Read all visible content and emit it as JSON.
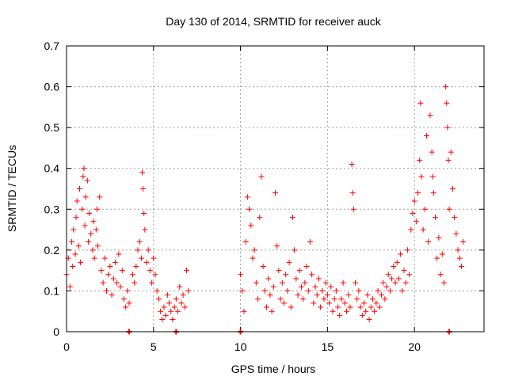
{
  "chart_data": {
    "type": "scatter",
    "title": "Day 130 of 2014, SRMTID for receiver auck",
    "xlabel": "GPS time / hours",
    "ylabel": "SRMTID / TECUs",
    "xlim": [
      0,
      24
    ],
    "ylim": [
      0,
      0.7
    ],
    "x_ticks": [
      0,
      5,
      10,
      15,
      20
    ],
    "x_tick_labels": [
      "0",
      "5",
      "10",
      "15",
      "20"
    ],
    "y_ticks": [
      0,
      0.1,
      0.2,
      0.3,
      0.4,
      0.5,
      0.6,
      0.7
    ],
    "y_tick_labels": [
      "0",
      "0.1",
      "0.2",
      "0.3",
      "0.4",
      "0.5",
      "0.6",
      "0.7"
    ],
    "grid": true,
    "marker": "plus",
    "series_color": "#ff0000",
    "series": [
      {
        "name": "SRMTID",
        "points": [
          [
            0.0,
            0.14
          ],
          [
            0.1,
            0.18
          ],
          [
            0.2,
            0.11
          ],
          [
            0.3,
            0.22
          ],
          [
            0.35,
            0.16
          ],
          [
            0.4,
            0.25
          ],
          [
            0.5,
            0.19
          ],
          [
            0.55,
            0.28
          ],
          [
            0.6,
            0.32
          ],
          [
            0.7,
            0.21
          ],
          [
            0.75,
            0.35
          ],
          [
            0.8,
            0.17
          ],
          [
            0.9,
            0.3
          ],
          [
            0.95,
            0.38
          ],
          [
            1.0,
            0.4
          ],
          [
            1.05,
            0.26
          ],
          [
            1.1,
            0.33
          ],
          [
            1.2,
            0.37
          ],
          [
            1.25,
            0.22
          ],
          [
            1.3,
            0.29
          ],
          [
            1.4,
            0.24
          ],
          [
            1.5,
            0.2
          ],
          [
            1.55,
            0.27
          ],
          [
            1.6,
            0.18
          ],
          [
            1.7,
            0.25
          ],
          [
            1.75,
            0.3
          ],
          [
            1.8,
            0.21
          ],
          [
            1.9,
            0.33
          ],
          [
            2.0,
            0.15
          ],
          [
            2.1,
            0.12
          ],
          [
            2.2,
            0.18
          ],
          [
            2.3,
            0.1
          ],
          [
            2.4,
            0.14
          ],
          [
            2.5,
            0.16
          ],
          [
            2.6,
            0.09
          ],
          [
            2.7,
            0.13
          ],
          [
            2.8,
            0.17
          ],
          [
            2.9,
            0.12
          ],
          [
            3.0,
            0.19
          ],
          [
            3.1,
            0.11
          ],
          [
            3.2,
            0.15
          ],
          [
            3.3,
            0.08
          ],
          [
            3.4,
            0.06
          ],
          [
            3.5,
            0.1
          ],
          [
            3.6,
            0.07
          ],
          [
            3.8,
            0.14
          ],
          [
            3.9,
            0.12
          ],
          [
            4.0,
            0.16
          ],
          [
            4.1,
            0.2
          ],
          [
            4.2,
            0.22
          ],
          [
            4.3,
            0.18
          ],
          [
            4.35,
            0.39
          ],
          [
            4.4,
            0.35
          ],
          [
            4.45,
            0.29
          ],
          [
            4.5,
            0.25
          ],
          [
            4.6,
            0.17
          ],
          [
            4.7,
            0.2
          ],
          [
            4.8,
            0.15
          ],
          [
            4.9,
            0.12
          ],
          [
            5.0,
            0.18
          ],
          [
            5.1,
            0.14
          ],
          [
            5.2,
            0.1
          ],
          [
            5.3,
            0.08
          ],
          [
            5.4,
            0.05
          ],
          [
            5.5,
            0.03
          ],
          [
            5.6,
            0.06
          ],
          [
            5.7,
            0.04
          ],
          [
            5.8,
            0.09
          ],
          [
            5.9,
            0.07
          ],
          [
            6.0,
            0.05
          ],
          [
            6.1,
            0.03
          ],
          [
            6.2,
            0.06
          ],
          [
            6.3,
            0.08
          ],
          [
            6.4,
            0.05
          ],
          [
            6.5,
            0.11
          ],
          [
            6.6,
            0.07
          ],
          [
            6.7,
            0.09
          ],
          [
            6.8,
            0.06
          ],
          [
            6.9,
            0.15
          ],
          [
            7.0,
            0.1
          ],
          [
            10.0,
            0.14
          ],
          [
            10.1,
            0.1
          ],
          [
            10.2,
            0.05
          ],
          [
            10.3,
            0.22
          ],
          [
            10.4,
            0.33
          ],
          [
            10.5,
            0.3
          ],
          [
            10.6,
            0.26
          ],
          [
            10.7,
            0.18
          ],
          [
            10.8,
            0.2
          ],
          [
            10.9,
            0.12
          ],
          [
            11.0,
            0.08
          ],
          [
            11.1,
            0.28
          ],
          [
            11.2,
            0.38
          ],
          [
            11.3,
            0.16
          ],
          [
            11.4,
            0.1
          ],
          [
            11.5,
            0.06
          ],
          [
            11.6,
            0.13
          ],
          [
            11.7,
            0.09
          ],
          [
            11.8,
            0.05
          ],
          [
            11.9,
            0.11
          ],
          [
            12.0,
            0.34
          ],
          [
            12.1,
            0.21
          ],
          [
            12.2,
            0.15
          ],
          [
            12.3,
            0.08
          ],
          [
            12.4,
            0.12
          ],
          [
            12.5,
            0.07
          ],
          [
            12.6,
            0.14
          ],
          [
            12.7,
            0.1
          ],
          [
            12.8,
            0.17
          ],
          [
            12.9,
            0.06
          ],
          [
            13.0,
            0.28
          ],
          [
            13.1,
            0.2
          ],
          [
            13.2,
            0.13
          ],
          [
            13.3,
            0.09
          ],
          [
            13.4,
            0.15
          ],
          [
            13.5,
            0.11
          ],
          [
            13.6,
            0.08
          ],
          [
            13.7,
            0.12
          ],
          [
            13.8,
            0.16
          ],
          [
            13.9,
            0.1
          ],
          [
            14.0,
            0.22
          ],
          [
            14.1,
            0.14
          ],
          [
            14.2,
            0.07
          ],
          [
            14.3,
            0.11
          ],
          [
            14.4,
            0.09
          ],
          [
            14.5,
            0.13
          ],
          [
            14.6,
            0.06
          ],
          [
            14.7,
            0.1
          ],
          [
            14.8,
            0.08
          ],
          [
            14.9,
            0.12
          ],
          [
            15.0,
            0.09
          ],
          [
            15.1,
            0.07
          ],
          [
            15.2,
            0.11
          ],
          [
            15.3,
            0.05
          ],
          [
            15.4,
            0.08
          ],
          [
            15.5,
            0.1
          ],
          [
            15.6,
            0.06
          ],
          [
            15.7,
            0.04
          ],
          [
            15.8,
            0.08
          ],
          [
            15.9,
            0.12
          ],
          [
            16.0,
            0.07
          ],
          [
            16.1,
            0.05
          ],
          [
            16.2,
            0.09
          ],
          [
            16.3,
            0.06
          ],
          [
            16.4,
            0.41
          ],
          [
            16.45,
            0.34
          ],
          [
            16.5,
            0.3
          ],
          [
            16.6,
            0.12
          ],
          [
            16.7,
            0.08
          ],
          [
            16.8,
            0.1
          ],
          [
            16.9,
            0.06
          ],
          [
            17.0,
            0.04
          ],
          [
            17.1,
            0.07
          ],
          [
            17.2,
            0.05
          ],
          [
            17.3,
            0.09
          ],
          [
            17.4,
            0.03
          ],
          [
            17.5,
            0.06
          ],
          [
            17.6,
            0.08
          ],
          [
            17.7,
            0.05
          ],
          [
            17.8,
            0.07
          ],
          [
            17.9,
            0.1
          ],
          [
            18.0,
            0.06
          ],
          [
            18.1,
            0.09
          ],
          [
            18.2,
            0.12
          ],
          [
            18.3,
            0.08
          ],
          [
            18.4,
            0.11
          ],
          [
            18.5,
            0.14
          ],
          [
            18.6,
            0.1
          ],
          [
            18.7,
            0.13
          ],
          [
            18.8,
            0.16
          ],
          [
            18.9,
            0.12
          ],
          [
            19.0,
            0.17
          ],
          [
            19.1,
            0.13
          ],
          [
            19.2,
            0.19
          ],
          [
            19.3,
            0.1
          ],
          [
            19.4,
            0.15
          ],
          [
            19.5,
            0.12
          ],
          [
            19.6,
            0.2
          ],
          [
            19.7,
            0.14
          ],
          [
            19.8,
            0.25
          ],
          [
            19.9,
            0.29
          ],
          [
            20.0,
            0.32
          ],
          [
            20.1,
            0.27
          ],
          [
            20.2,
            0.34
          ],
          [
            20.3,
            0.42
          ],
          [
            20.35,
            0.56
          ],
          [
            20.4,
            0.38
          ],
          [
            20.5,
            0.25
          ],
          [
            20.6,
            0.3
          ],
          [
            20.7,
            0.48
          ],
          [
            20.8,
            0.22
          ],
          [
            20.9,
            0.53
          ],
          [
            21.0,
            0.44
          ],
          [
            21.05,
            0.38
          ],
          [
            21.1,
            0.34
          ],
          [
            21.2,
            0.28
          ],
          [
            21.3,
            0.18
          ],
          [
            21.4,
            0.23
          ],
          [
            21.5,
            0.14
          ],
          [
            21.6,
            0.19
          ],
          [
            21.7,
            0.12
          ],
          [
            21.8,
            0.6
          ],
          [
            21.85,
            0.56
          ],
          [
            21.9,
            0.5
          ],
          [
            21.95,
            0.42
          ],
          [
            22.0,
            0.3
          ],
          [
            22.1,
            0.44
          ],
          [
            22.2,
            0.35
          ],
          [
            22.3,
            0.28
          ],
          [
            22.4,
            0.24
          ],
          [
            22.5,
            0.2
          ],
          [
            22.6,
            0.18
          ],
          [
            22.7,
            0.16
          ],
          [
            22.8,
            0.22
          ]
        ],
        "zero_points": [
          3.6,
          6.3,
          10.0,
          22.0
        ]
      }
    ]
  }
}
